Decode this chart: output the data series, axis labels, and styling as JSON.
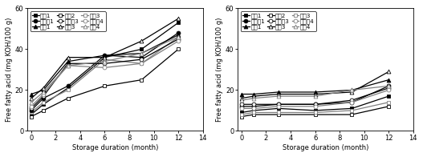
{
  "x": [
    0,
    1,
    3,
    6,
    9,
    12
  ],
  "left": {
    "s1": [
      8,
      13,
      21,
      36,
      40,
      53
    ],
    "s2": [
      7,
      10,
      16,
      22,
      25,
      40
    ],
    "s3": [
      9,
      14,
      20,
      35,
      33,
      46
    ],
    "h1": [
      10,
      16,
      22,
      37,
      36,
      48
    ],
    "h3": [
      11,
      17,
      33,
      33,
      35,
      45
    ],
    "h4": [
      12,
      18,
      32,
      31,
      33,
      44
    ],
    "n1": [
      18,
      20,
      34,
      37,
      38,
      47
    ],
    "n3": [
      16,
      21,
      36,
      36,
      44,
      55
    ],
    "n4": [
      14,
      19,
      32,
      34,
      38,
      46
    ]
  },
  "right": {
    "s1": [
      9,
      10,
      11,
      10,
      11,
      17
    ],
    "s2": [
      7,
      8,
      8,
      8,
      8,
      12
    ],
    "s3": [
      8,
      9,
      9,
      9,
      10,
      14
    ],
    "h1": [
      12,
      12,
      13,
      13,
      14,
      22
    ],
    "h3": [
      13,
      13,
      13,
      13,
      15,
      21
    ],
    "h4": [
      11,
      11,
      12,
      12,
      14,
      20
    ],
    "n1": [
      18,
      18,
      19,
      19,
      20,
      25
    ],
    "n3": [
      16,
      17,
      18,
      18,
      19,
      29
    ],
    "n4": [
      15,
      16,
      17,
      17,
      20,
      22
    ]
  },
  "legend_col1": [
    "상관1",
    "상관2",
    "상관3"
  ],
  "legend_col2": [
    "한가룤1",
    "한가룤3",
    "한가룤4"
  ],
  "legend_col3": [
    "신길1",
    "신길3",
    "신길4"
  ],
  "xlabel": "Storage duration (month)",
  "ylabel": "Free fatty acid (mg KOH/100 g)",
  "xlim": [
    -0.3,
    14
  ],
  "ylim": [
    0,
    60
  ],
  "xticks": [
    0,
    2,
    4,
    6,
    8,
    10,
    12,
    14
  ],
  "yticks": [
    0,
    20,
    40,
    60
  ],
  "fontsize": 6.0,
  "legend_fontsize": 5.2,
  "markersize": 3.5,
  "linewidth": 0.9
}
